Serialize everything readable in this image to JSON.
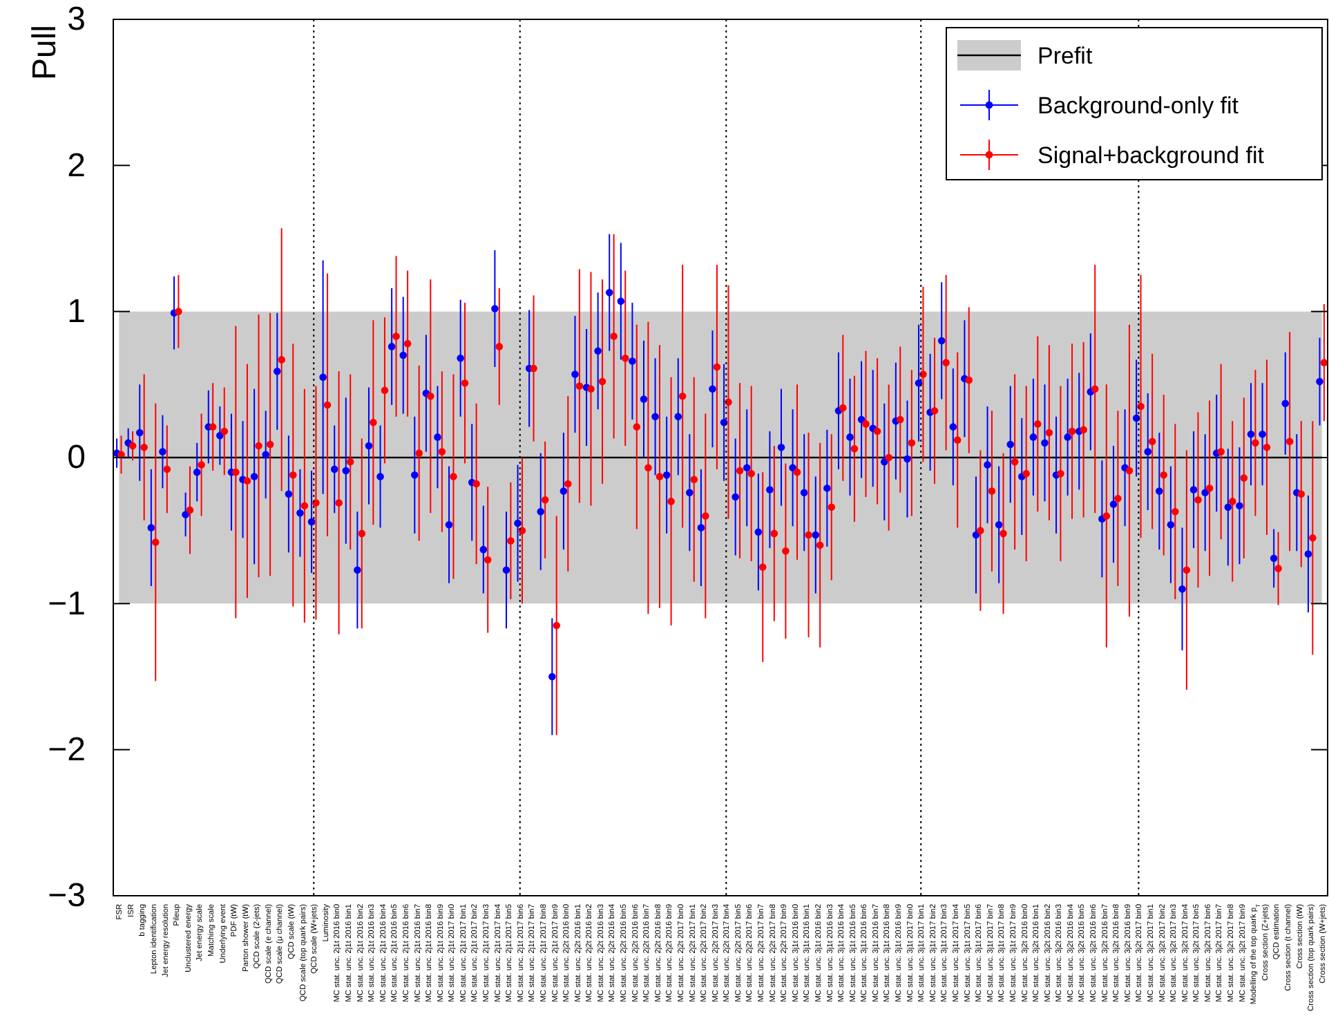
{
  "chart_data": {
    "type": "scatter",
    "ylabel": "Pull",
    "categories": [
      "FSR",
      "ISR",
      "b tagging",
      "Lepton identification",
      "Jet energy resolution",
      "Pileup",
      "Unclustered energy",
      "Jet energy scale",
      "Matching scale",
      "Underlying event",
      "PDF (tW)",
      "Parton shower (tW)",
      "QCD scale (2-jets)",
      "QCD scale (e channel)",
      "QCD scale (μ channel)",
      "QCD scale (tW)",
      "QCD scale (top quark pairs)",
      "QCD scale (W+jets)",
      "Luminosity",
      "MC stat. unc. 2j1t 2016 bin0",
      "MC stat. unc. 2j1t 2016 bin1",
      "MC stat. unc. 2j1t 2016 bin2",
      "MC stat. unc. 2j1t 2016 bin3",
      "MC stat. unc. 2j1t 2016 bin4",
      "MC stat. unc. 2j1t 2016 bin5",
      "MC stat. unc. 2j1t 2016 bin6",
      "MC stat. unc. 2j1t 2016 bin7",
      "MC stat. unc. 2j1t 2016 bin8",
      "MC stat. unc. 2j1t 2016 bin9",
      "MC stat. unc. 2j1t 2017 bin0",
      "MC stat. unc. 2j1t 2017 bin1",
      "MC stat. unc. 2j1t 2017 bin2",
      "MC stat. unc. 2j1t 2017 bin3",
      "MC stat. unc. 2j1t 2017 bin4",
      "MC stat. unc. 2j1t 2017 bin5",
      "MC stat. unc. 2j1t 2017 bin6",
      "MC stat. unc. 2j1t 2017 bin7",
      "MC stat. unc. 2j1t 2017 bin8",
      "MC stat. unc. 2j1t 2017 bin9",
      "MC stat. unc. 2j2t 2016 bin0",
      "MC stat. unc. 2j2t 2016 bin1",
      "MC stat. unc. 2j2t 2016 bin2",
      "MC stat. unc. 2j2t 2016 bin3",
      "MC stat. unc. 2j2t 2016 bin4",
      "MC stat. unc. 2j2t 2016 bin5",
      "MC stat. unc. 2j2t 2016 bin6",
      "MC stat. unc. 2j2t 2016 bin7",
      "MC stat. unc. 2j2t 2016 bin8",
      "MC stat. unc. 2j2t 2016 bin9",
      "MC stat. unc. 2j2t 2017 bin0",
      "MC stat. unc. 2j2t 2017 bin1",
      "MC stat. unc. 2j2t 2017 bin2",
      "MC stat. unc. 2j2t 2017 bin3",
      "MC stat. unc. 2j2t 2017 bin4",
      "MC stat. unc. 2j2t 2017 bin5",
      "MC stat. unc. 2j2t 2017 bin6",
      "MC stat. unc. 2j2t 2017 bin7",
      "MC stat. unc. 2j2t 2017 bin8",
      "MC stat. unc. 2j2t 2017 bin9",
      "MC stat. unc. 3j1t 2016 bin0",
      "MC stat. unc. 3j1t 2016 bin1",
      "MC stat. unc. 3j1t 2016 bin2",
      "MC stat. unc. 3j1t 2016 bin3",
      "MC stat. unc. 3j1t 2016 bin4",
      "MC stat. unc. 3j1t 2016 bin5",
      "MC stat. unc. 3j1t 2016 bin6",
      "MC stat. unc. 3j1t 2016 bin7",
      "MC stat. unc. 3j1t 2016 bin8",
      "MC stat. unc. 3j1t 2016 bin9",
      "MC stat. unc. 3j1t 2017 bin0",
      "MC stat. unc. 3j1t 2017 bin1",
      "MC stat. unc. 3j1t 2017 bin2",
      "MC stat. unc. 3j1t 2017 bin3",
      "MC stat. unc. 3j1t 2017 bin4",
      "MC stat. unc. 3j1t 2017 bin5",
      "MC stat. unc. 3j1t 2017 bin6",
      "MC stat. unc. 3j1t 2017 bin7",
      "MC stat. unc. 3j1t 2017 bin8",
      "MC stat. unc. 3j1t 2017 bin9",
      "MC stat. unc. 3j2t 2016 bin0",
      "MC stat. unc. 3j2t 2016 bin1",
      "MC stat. unc. 3j2t 2016 bin2",
      "MC stat. unc. 3j2t 2016 bin3",
      "MC stat. unc. 3j2t 2016 bin4",
      "MC stat. unc. 3j2t 2016 bin5",
      "MC stat. unc. 3j2t 2016 bin6",
      "MC stat. unc. 3j2t 2016 bin7",
      "MC stat. unc. 3j2t 2016 bin8",
      "MC stat. unc. 3j2t 2016 bin9",
      "MC stat. unc. 3j2t 2017 bin0",
      "MC stat. unc. 3j2t 2017 bin1",
      "MC stat. unc. 3j2t 2017 bin2",
      "MC stat. unc. 3j2t 2017 bin3",
      "MC stat. unc. 3j2t 2017 bin4",
      "MC stat. unc. 3j2t 2017 bin5",
      "MC stat. unc. 3j2t 2017 bin6",
      "MC stat. unc. 3j2t 2017 bin7",
      "MC stat. unc. 3j2t 2017 bin8",
      "MC stat. unc. 3j2t 2017 bin9",
      "Modelling of the top quark p$_{T}$",
      "Cross section (Z+jets)",
      "QCD estimation",
      "Cross section (t channel)",
      "Cross section (tW)",
      "Cross section (top quark pairs)",
      "Cross section (W+jets)"
    ],
    "series": [
      {
        "name": "Prefit",
        "type": "line",
        "color": "#000000",
        "line_style": "solid",
        "values": [
          0,
          0,
          0,
          0,
          0,
          0,
          0,
          0,
          0,
          0,
          0,
          0,
          0,
          0,
          0,
          0,
          0,
          0,
          0,
          0,
          0,
          0,
          0,
          0,
          0,
          0,
          0,
          0,
          0,
          0,
          0,
          0,
          0,
          0,
          0,
          0,
          0,
          0,
          0,
          0,
          0,
          0,
          0,
          0,
          0,
          0,
          0,
          0,
          0,
          0,
          0,
          0,
          0,
          0,
          0,
          0,
          0,
          0,
          0,
          0,
          0,
          0,
          0,
          0,
          0,
          0,
          0,
          0,
          0,
          0,
          0,
          0,
          0,
          0,
          0,
          0,
          0,
          0,
          0,
          0,
          0,
          0,
          0,
          0,
          0,
          0,
          0,
          0,
          0,
          0,
          0,
          0,
          0,
          0,
          0,
          0,
          0,
          0,
          0,
          0,
          0,
          0,
          0,
          0,
          0,
          0
        ],
        "lower": [
          -1,
          -1,
          -1,
          -1,
          -1,
          -1,
          -1,
          -1,
          -1,
          -1,
          -1,
          -1,
          -1,
          -1,
          -1,
          -1,
          -1,
          -1,
          -1,
          -1,
          -1,
          -1,
          -1,
          -1,
          -1,
          -1,
          -1,
          -1,
          -1,
          -1,
          -1,
          -1,
          -1,
          -1,
          -1,
          -1,
          -1,
          -1,
          -1,
          -1,
          -1,
          -1,
          -1,
          -1,
          -1,
          -1,
          -1,
          -1,
          -1,
          -1,
          -1,
          -1,
          -1,
          -1,
          -1,
          -1,
          -1,
          -1,
          -1,
          -1,
          -1,
          -1,
          -1,
          -1,
          -1,
          -1,
          -1,
          -1,
          -1,
          -1,
          -1,
          -1,
          -1,
          -1,
          -1,
          -1,
          -1,
          -1,
          -1,
          -1,
          -1,
          -1,
          -1,
          -1,
          -1,
          -1,
          -1,
          -1,
          -1,
          -1,
          -1,
          -1,
          -1,
          -1,
          -1,
          -1,
          -1,
          -1,
          -1,
          -1,
          -1,
          -1,
          -1,
          -1,
          -1,
          -1
        ],
        "upper": [
          1,
          1,
          1,
          1,
          1,
          1,
          1,
          1,
          1,
          1,
          1,
          1,
          1,
          1,
          1,
          1,
          1,
          1,
          1,
          1,
          1,
          1,
          1,
          1,
          1,
          1,
          1,
          1,
          1,
          1,
          1,
          1,
          1,
          1,
          1,
          1,
          1,
          1,
          1,
          1,
          1,
          1,
          1,
          1,
          1,
          1,
          1,
          1,
          1,
          1,
          1,
          1,
          1,
          1,
          1,
          1,
          1,
          1,
          1,
          1,
          1,
          1,
          1,
          1,
          1,
          1,
          1,
          1,
          1,
          1,
          1,
          1,
          1,
          1,
          1,
          1,
          1,
          1,
          1,
          1,
          1,
          1,
          1,
          1,
          1,
          1,
          1,
          1,
          1,
          1,
          1,
          1,
          1,
          1,
          1,
          1,
          1,
          1,
          1,
          1,
          1,
          1,
          1,
          1,
          1,
          1
        ]
      },
      {
        "name": "Background-only fit",
        "type": "scatter",
        "color": "#0000ff",
        "marker": "circle",
        "values": [
          0.03,
          0.1,
          0.17,
          -0.48,
          0.04,
          0.99,
          -0.39,
          -0.1,
          0.21,
          0.15,
          -0.1,
          -0.15,
          -0.13,
          0.02,
          0.59,
          -0.25,
          -0.38,
          -0.44,
          0.55,
          -0.08,
          -0.09,
          -0.77,
          0.08,
          -0.13,
          0.76,
          0.7,
          -0.12,
          0.44,
          0.14,
          -0.46,
          0.68,
          -0.17,
          -0.63,
          1.02,
          -0.77,
          -0.45,
          0.61,
          -0.37,
          -1.5,
          -0.23,
          0.57,
          0.48,
          0.73,
          1.13,
          1.07,
          0.66,
          0.4,
          0.28,
          -0.12,
          0.28,
          -0.24,
          -0.48,
          0.47,
          0.24,
          -0.27,
          -0.07,
          -0.51,
          -0.22,
          0.07,
          -0.07,
          -0.24,
          -0.53,
          -0.21,
          0.32,
          0.14,
          0.26,
          0.2,
          -0.03,
          0.25,
          -0.01,
          0.51,
          0.31,
          0.8,
          0.21,
          0.54,
          -0.53,
          -0.05,
          -0.46,
          0.09,
          -0.13,
          0.14,
          0.1,
          -0.12,
          0.14,
          0.18,
          0.45,
          -0.42,
          -0.32,
          -0.07,
          0.27,
          0.04,
          -0.23,
          -0.46,
          -0.9,
          -0.22,
          -0.24,
          0.03,
          -0.34,
          -0.33,
          0.16,
          0.16,
          -0.69,
          0.37,
          -0.24,
          -0.66,
          0.52
        ],
        "errors": [
          0.1,
          0.1,
          0.33,
          0.4,
          0.25,
          0.25,
          0.15,
          0.2,
          0.25,
          0.2,
          0.4,
          0.4,
          0.6,
          0.3,
          0.4,
          0.4,
          0.3,
          0.35,
          0.8,
          0.3,
          0.5,
          0.4,
          0.4,
          0.35,
          0.4,
          0.4,
          0.4,
          0.4,
          0.35,
          0.4,
          0.4,
          0.4,
          0.3,
          0.4,
          0.4,
          0.4,
          0.4,
          0.4,
          0.4,
          0.4,
          0.4,
          0.4,
          0.4,
          0.4,
          0.4,
          0.4,
          0.4,
          0.4,
          0.4,
          0.4,
          0.4,
          0.4,
          0.4,
          0.4,
          0.4,
          0.4,
          0.4,
          0.4,
          0.4,
          0.4,
          0.4,
          0.4,
          0.4,
          0.4,
          0.4,
          0.4,
          0.4,
          0.4,
          0.4,
          0.4,
          0.4,
          0.4,
          0.4,
          0.4,
          0.4,
          0.4,
          0.4,
          0.4,
          0.4,
          0.4,
          0.4,
          0.4,
          0.4,
          0.4,
          0.4,
          0.4,
          0.4,
          0.4,
          0.4,
          0.4,
          0.4,
          0.4,
          0.4,
          0.42,
          0.4,
          0.4,
          0.4,
          0.4,
          0.4,
          0.35,
          0.35,
          0.2,
          0.35,
          0.4,
          0.4,
          0.3
        ]
      },
      {
        "name": "Signal+background fit",
        "type": "scatter",
        "color": "#ff0000",
        "marker": "circle",
        "values": [
          0.02,
          0.08,
          0.07,
          -0.58,
          -0.08,
          1.0,
          -0.36,
          -0.05,
          0.21,
          0.18,
          -0.1,
          -0.16,
          0.08,
          0.09,
          0.67,
          -0.12,
          -0.33,
          -0.31,
          0.36,
          -0.31,
          -0.03,
          -0.52,
          0.24,
          0.46,
          0.83,
          0.78,
          0.03,
          0.42,
          0.04,
          -0.13,
          0.51,
          -0.18,
          -0.7,
          0.76,
          -0.57,
          -0.5,
          0.61,
          -0.29,
          -1.15,
          -0.18,
          0.49,
          0.47,
          0.52,
          0.83,
          0.68,
          0.21,
          -0.07,
          -0.13,
          -0.3,
          0.42,
          -0.15,
          -0.4,
          0.62,
          0.38,
          -0.09,
          -0.11,
          -0.75,
          -0.52,
          -0.64,
          -0.1,
          -0.53,
          -0.6,
          -0.34,
          0.34,
          0.06,
          0.23,
          0.18,
          0.0,
          0.26,
          0.1,
          0.57,
          0.32,
          0.65,
          0.12,
          0.53,
          -0.5,
          -0.23,
          -0.52,
          -0.03,
          -0.11,
          0.23,
          0.17,
          -0.11,
          0.18,
          0.19,
          0.47,
          -0.4,
          -0.28,
          -0.09,
          0.35,
          0.11,
          -0.12,
          -0.37,
          -0.77,
          -0.29,
          -0.21,
          0.04,
          -0.3,
          -0.14,
          0.1,
          0.07,
          -0.76,
          0.11,
          -0.25,
          -0.55,
          0.65
        ],
        "errors": [
          0.13,
          0.1,
          0.5,
          0.95,
          0.3,
          0.25,
          0.3,
          0.35,
          0.3,
          0.3,
          1.0,
          0.8,
          0.9,
          0.9,
          0.9,
          0.9,
          0.8,
          0.8,
          0.9,
          0.9,
          0.6,
          0.65,
          0.7,
          0.5,
          0.55,
          0.5,
          0.6,
          0.8,
          0.55,
          0.7,
          0.55,
          0.55,
          0.5,
          0.4,
          0.4,
          0.5,
          0.5,
          0.4,
          0.75,
          0.6,
          0.8,
          0.8,
          0.7,
          0.7,
          0.6,
          0.7,
          1.0,
          0.9,
          0.85,
          0.9,
          0.7,
          0.7,
          0.7,
          0.8,
          0.6,
          0.6,
          0.65,
          0.6,
          0.6,
          0.6,
          0.7,
          0.7,
          0.5,
          0.5,
          0.5,
          0.5,
          0.5,
          0.5,
          0.5,
          0.5,
          0.6,
          0.5,
          0.6,
          0.6,
          0.5,
          0.55,
          0.55,
          0.55,
          0.6,
          0.6,
          0.6,
          0.6,
          0.6,
          0.6,
          0.6,
          0.85,
          0.9,
          0.6,
          1.0,
          0.9,
          0.6,
          0.55,
          0.6,
          0.82,
          0.6,
          0.6,
          0.6,
          0.55,
          0.55,
          0.5,
          0.6,
          0.25,
          0.75,
          0.5,
          0.8,
          0.4
        ]
      }
    ],
    "ylim": [
      -3,
      3
    ],
    "yticks": [
      {
        "value": -3,
        "label": "−3"
      },
      {
        "value": -2,
        "label": "−2"
      },
      {
        "value": -1,
        "label": "−1"
      },
      0,
      1,
      2,
      3
    ],
    "ref_lines": [
      {
        "axis": "x",
        "value": "QCD scale (W+jets)",
        "line_style": "dotted",
        "color": "#000000"
      },
      {
        "axis": "x",
        "value": "MC stat. unc. 2j1t 2017 bin6",
        "line_style": "dotted",
        "color": "#000000"
      },
      {
        "axis": "x",
        "value": "MC stat. unc. 2j2t 2017 bin4",
        "line_style": "dotted",
        "color": "#000000"
      },
      {
        "axis": "x",
        "value": "MC stat. unc. 3j1t 2017 bin1",
        "line_style": "dotted",
        "color": "#000000"
      },
      {
        "axis": "x",
        "value": "MC stat. unc. 3j2t 2017 bin0",
        "line_style": "dotted",
        "color": "#000000"
      }
    ],
    "legend": "top right",
    "grid": false
  }
}
